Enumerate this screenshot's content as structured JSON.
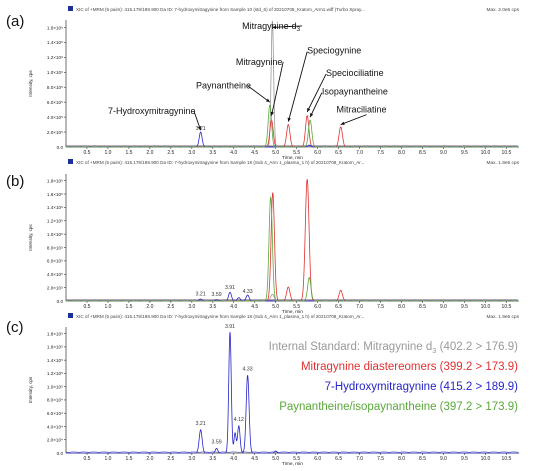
{
  "panels": [
    {
      "letter": "(a)",
      "header": "XIC of +MRM (5 pairs): 415.178/189.900 Da ID: 7-hydroxymitragynine from Sample 10 (std_6) of 20210708_Kratom_Arm1.wiff (Turbo Spray...",
      "max": "Max. 2.0e5 cps"
    },
    {
      "letter": "(b)",
      "header": "XIC of +MRM (5 pairs): 415.178/189.900 Da ID: 7-hydroxymitragynine from Sample 18 (Sub 4_Arm 1_plasma_1 h) of 20210708_Kratom_Ar...",
      "max": "Max. 1.9e5 cps"
    },
    {
      "letter": "(c)",
      "header": "XIC of +MRM (5 pairs): 415.178/189.900 Da ID: 7-hydroxymitragynine from Sample 18 (Sub 4_Arm 1_plasma_1 h) of 20210708_Kratom_Ar...",
      "max": "Max. 1.9e5 cps"
    }
  ],
  "colors": {
    "gray": "#9a9a9a",
    "red": "#e03030",
    "blue": "#2525c8",
    "green": "#5aa83a",
    "axis": "#333333",
    "marker": "#1c2f9a"
  },
  "legend": [
    {
      "text": "Internal Standard: Mitragynine d3 (402.2 > 176.9)",
      "color": "gray"
    },
    {
      "text": "Mitragynine diastereomers (399.2 > 173.9)",
      "color": "red"
    },
    {
      "text": "7-Hydroxymitragynine (415.2 > 189.9)",
      "color": "blue"
    },
    {
      "text": "Paynantheine/isopaynantheine (397.2 > 173.9)",
      "color": "green"
    }
  ],
  "chart_data": [
    {
      "type": "line",
      "xlabel": "Time, min",
      "ylabel": "Intensity, cps",
      "xlim": [
        0,
        10.8
      ],
      "ylim": [
        0,
        1700000.0
      ],
      "xticks": [
        "0.5",
        "1.0",
        "1.5",
        "2.0",
        "2.5",
        "3.0",
        "3.5",
        "4.0",
        "4.5",
        "5.0",
        "5.5",
        "6.0",
        "6.5",
        "7.0",
        "7.5",
        "8.0",
        "8.5",
        "9.0",
        "9.5",
        "10.0",
        "10.5"
      ],
      "yticks": [
        {
          "v": 200000.0,
          "label": "2.0×10⁵"
        },
        {
          "v": 400000.0,
          "label": "4.0×10⁵"
        },
        {
          "v": 600000.0,
          "label": "6.0×10⁵"
        },
        {
          "v": 800000.0,
          "label": "8.0×10⁵"
        },
        {
          "v": 1000000.0,
          "label": "1.0×10⁶"
        },
        {
          "v": 1200000.0,
          "label": "1.2×10⁶"
        },
        {
          "v": 1400000.0,
          "label": "1.4×10⁶"
        },
        {
          "v": 1600000.0,
          "label": "1.6×10⁶"
        }
      ],
      "series": [
        {
          "color": "gray",
          "peaks": [
            [
              4.92,
              1690000.0,
              0.03
            ]
          ]
        },
        {
          "color": "red",
          "peaks": [
            [
              4.9,
              360000.0,
              0.04
            ],
            [
              5.3,
              300000.0,
              0.04
            ],
            [
              5.75,
              420000.0,
              0.04
            ],
            [
              6.55,
              270000.0,
              0.04
            ]
          ]
        },
        {
          "color": "blue",
          "peaks": [
            [
              3.21,
              200000.0,
              0.035
            ],
            [
              5.8,
              25000.0,
              0.04
            ]
          ]
        },
        {
          "color": "green",
          "peaks": [
            [
              4.86,
              560000.0,
              0.04
            ],
            [
              5.82,
              360000.0,
              0.04
            ]
          ]
        }
      ],
      "peak_labels": [
        {
          "x": 3.21,
          "y": 210000.0,
          "text": "3.21",
          "color": "blue"
        }
      ],
      "annotations": [
        {
          "text": "Mitragynine-d",
          "sub": "3",
          "tx": 4.2,
          "ty": 1580000.0,
          "ax": 4.92,
          "ay": 1600000.0
        },
        {
          "text": "Speciogynine",
          "tx": 5.75,
          "ty": 1250000.0,
          "ax": 5.3,
          "ay": 340000.0
        },
        {
          "text": "Mitragynine",
          "tx": 4.05,
          "ty": 1100000.0,
          "ax": 4.9,
          "ay": 420000.0
        },
        {
          "text": "Speciociliatine",
          "tx": 6.2,
          "ty": 950000.0,
          "ax": 5.75,
          "ay": 470000.0
        },
        {
          "text": "Paynantheine",
          "tx": 3.1,
          "ty": 780000.0,
          "ax": 4.86,
          "ay": 600000.0
        },
        {
          "text": "Isopaynantheine",
          "tx": 6.1,
          "ty": 700000.0,
          "ax": 5.82,
          "ay": 400000.0
        },
        {
          "text": "Mitraciliatine",
          "tx": 6.45,
          "ty": 460000.0,
          "ax": 6.55,
          "ay": 300000.0
        },
        {
          "text": "7-Hydroxymitragynine",
          "tx": 1.0,
          "ty": 440000.0,
          "ax": 3.21,
          "ay": 225000.0
        }
      ]
    },
    {
      "type": "line",
      "xlabel": "Time, min",
      "ylabel": "Intensity, cps",
      "xlim": [
        0,
        10.8
      ],
      "ylim": [
        0,
        1900000.0
      ],
      "xticks": [
        "0.5",
        "1.0",
        "1.5",
        "2.0",
        "2.5",
        "3.0",
        "3.5",
        "4.0",
        "4.5",
        "5.0",
        "5.5",
        "6.0",
        "6.5",
        "7.0",
        "7.5",
        "8.0",
        "8.5",
        "9.0",
        "9.5",
        "10.0",
        "10.5"
      ],
      "yticks": [
        {
          "v": 200000.0,
          "label": "2.0×10⁵"
        },
        {
          "v": 400000.0,
          "label": "4.0×10⁵"
        },
        {
          "v": 600000.0,
          "label": "6.0×10⁵"
        },
        {
          "v": 800000.0,
          "label": "8.0×10⁵"
        },
        {
          "v": 1000000.0,
          "label": "1.0×10⁶"
        },
        {
          "v": 1200000.0,
          "label": "1.2×10⁶"
        },
        {
          "v": 1400000.0,
          "label": "1.4×10⁶"
        },
        {
          "v": 1600000.0,
          "label": "1.6×10⁶"
        },
        {
          "v": 1800000.0,
          "label": "1.8×10⁶"
        }
      ],
      "series": [
        {
          "color": "gray",
          "peaks": [
            [
              4.92,
              100000.0,
              0.04
            ]
          ]
        },
        {
          "color": "red",
          "peaks": [
            [
              4.93,
              1620000.0,
              0.04
            ],
            [
              5.3,
              210000.0,
              0.04
            ],
            [
              5.75,
              1820000.0,
              0.045
            ],
            [
              6.55,
              160000.0,
              0.04
            ]
          ]
        },
        {
          "color": "blue",
          "peaks": [
            [
              3.21,
              30000.0,
              0.035
            ],
            [
              3.59,
              20000.0,
              0.035
            ],
            [
              3.91,
              130000.0,
              0.035
            ],
            [
              4.12,
              50000.0,
              0.035
            ],
            [
              4.33,
              90000.0,
              0.035
            ]
          ]
        },
        {
          "color": "green",
          "peaks": [
            [
              4.88,
              1550000.0,
              0.04
            ],
            [
              5.8,
              350000.0,
              0.04
            ]
          ]
        }
      ],
      "peak_labels": [
        {
          "x": 3.21,
          "y": 60000.0,
          "text": "3.21",
          "color": "blue"
        },
        {
          "x": 3.59,
          "y": 50000.0,
          "text": "3.59",
          "color": "blue"
        },
        {
          "x": 3.91,
          "y": 160000.0,
          "text": "3.91",
          "color": "blue"
        },
        {
          "x": 4.33,
          "y": 100000.0,
          "text": "4.33",
          "color": "blue"
        }
      ],
      "annotations": []
    },
    {
      "type": "line",
      "xlabel": "Time, min",
      "ylabel": "Intensity, cps",
      "xlim": [
        0,
        10.8
      ],
      "ylim": [
        0,
        190000.0
      ],
      "xticks": [
        "0.5",
        "1.0",
        "1.5",
        "2.0",
        "2.5",
        "3.0",
        "3.5",
        "4.0",
        "4.5",
        "5.0",
        "5.5",
        "6.0",
        "6.5",
        "7.0",
        "7.5",
        "8.0",
        "8.5",
        "9.0",
        "9.5",
        "10.0",
        "10.5"
      ],
      "yticks": [
        {
          "v": 20000.0,
          "label": "2.0×10⁴"
        },
        {
          "v": 40000.0,
          "label": "4.0×10⁴"
        },
        {
          "v": 60000.0,
          "label": "6.0×10⁴"
        },
        {
          "v": 80000.0,
          "label": "8.0×10⁴"
        },
        {
          "v": 100000.0,
          "label": "1.0×10⁵"
        },
        {
          "v": 120000.0,
          "label": "1.2×10⁵"
        },
        {
          "v": 140000.0,
          "label": "1.4×10⁵"
        },
        {
          "v": 160000.0,
          "label": "1.6×10⁵"
        },
        {
          "v": 180000.0,
          "label": "1.8×10⁵"
        }
      ],
      "series": [
        {
          "color": "blue",
          "peaks": [
            [
              3.21,
              35000.0,
              0.035
            ],
            [
              3.59,
              7000.0,
              0.03
            ],
            [
              3.91,
              182000.0,
              0.03
            ],
            [
              4.03,
              30000.0,
              0.025
            ],
            [
              4.12,
              41000.0,
              0.03
            ],
            [
              4.33,
              117000.0,
              0.035
            ],
            [
              5.0,
              3000.0,
              0.03
            ]
          ]
        }
      ],
      "peak_labels": [
        {
          "x": 3.21,
          "y": 40000.0,
          "text": "3.21",
          "color": "blue"
        },
        {
          "x": 3.59,
          "y": 12000.0,
          "text": "3.59",
          "color": "blue"
        },
        {
          "x": 3.91,
          "y": 186000.0,
          "text": "3.91",
          "color": "blue"
        },
        {
          "x": 4.12,
          "y": 46000.0,
          "text": "4.12",
          "color": "blue"
        },
        {
          "x": 4.33,
          "y": 122000.0,
          "text": "4.33",
          "color": "blue"
        }
      ],
      "annotations": []
    }
  ]
}
